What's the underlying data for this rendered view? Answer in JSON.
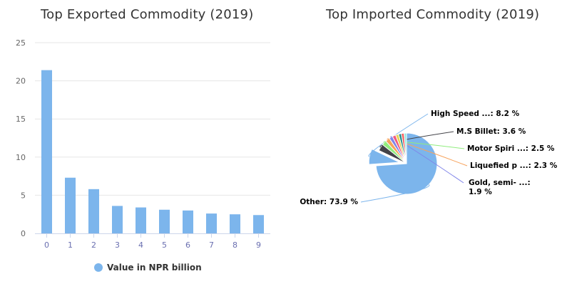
{
  "chart_data": [
    {
      "type": "bar",
      "title": "Top Exported Commodity (2019)",
      "categories": [
        "0",
        "1",
        "2",
        "3",
        "4",
        "5",
        "6",
        "7",
        "8",
        "9"
      ],
      "series": [
        {
          "name": "Value in NPR billion",
          "color": "#7cb5ec",
          "values": [
            21.4,
            7.3,
            5.8,
            3.6,
            3.4,
            3.1,
            3.0,
            2.6,
            2.5,
            2.4
          ]
        }
      ],
      "yticks": [
        0,
        5,
        10,
        15,
        20,
        25
      ],
      "ylim": [
        0,
        25
      ],
      "grid": true,
      "legend": "bottom-center"
    },
    {
      "type": "pie",
      "title": "Top Imported Commodity (2019)",
      "slices": [
        {
          "label": "Other",
          "label_text": "Other: 73.9 %",
          "value": 73.9,
          "color": "#7cb5ec"
        },
        {
          "label": "High Speed ...",
          "label_text": "High Speed ...: 8.2 %",
          "value": 8.2,
          "color": "#7cb5ec"
        },
        {
          "label": "M.S Billet",
          "label_text": "M.S Billet: 3.6 %",
          "value": 3.6,
          "color": "#434348"
        },
        {
          "label": "Motor Spiri ...",
          "label_text": "Motor Spiri ...: 2.5 %",
          "value": 2.5,
          "color": "#90ed7d"
        },
        {
          "label": "Liquefied p ...",
          "label_text": "Liquefied p ...: 2.3 %",
          "value": 2.3,
          "color": "#f7a35c"
        },
        {
          "label": "Gold, semi- ...",
          "label_text": "Gold, semi- ...:",
          "label_text2": "1.9 %",
          "value": 1.9,
          "color": "#8085e9"
        },
        {
          "label": "",
          "value": 1.8,
          "color": "#f15c80"
        },
        {
          "label": "",
          "value": 1.6,
          "color": "#e4d354"
        },
        {
          "label": "",
          "value": 1.5,
          "color": "#2b908f"
        },
        {
          "label": "",
          "value": 1.4,
          "color": "#f45b5b"
        },
        {
          "label": "",
          "value": 1.3,
          "color": "#91e8e1"
        }
      ]
    }
  ]
}
